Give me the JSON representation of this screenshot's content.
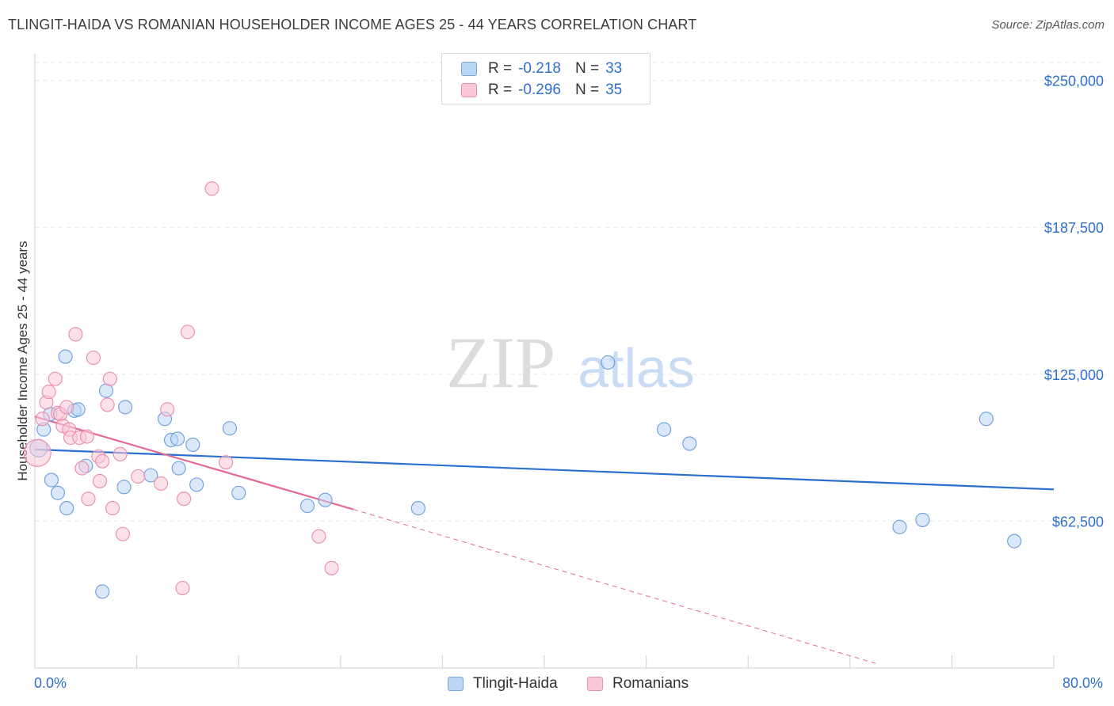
{
  "title": "TLINGIT-HAIDA VS ROMANIAN HOUSEHOLDER INCOME AGES 25 - 44 YEARS CORRELATION CHART",
  "source": "Source: ZipAtlas.com",
  "watermark": {
    "zip": "ZIP",
    "atlas": "atlas"
  },
  "legend": {
    "rows": [
      {
        "r_label": "R =",
        "r_value": "-0.218",
        "n_label": "N =",
        "n_value": "33"
      },
      {
        "r_label": "R =",
        "r_value": "-0.296",
        "n_label": "N =",
        "n_value": "35"
      }
    ]
  },
  "x_axis": {
    "min_label": "0.0%",
    "max_label": "80.0%"
  },
  "chart_data": {
    "type": "scatter",
    "title": "TLINGIT-HAIDA VS ROMANIAN HOUSEHOLDER INCOME AGES 25 - 44 YEARS CORRELATION CHART",
    "xlabel": "",
    "ylabel": "Householder Income Ages 25 - 44 years",
    "xlim": [
      0,
      80
    ],
    "ylim": [
      0,
      262000
    ],
    "y_ticks": [
      62500,
      125000,
      187500,
      250000
    ],
    "y_tick_labels": [
      "$62,500",
      "$125,000",
      "$187,500",
      "$250,000"
    ],
    "grid": true,
    "series": [
      {
        "name": "Tlingit-Haida",
        "color": "#6b9de0",
        "fill": "#bcd5f5",
        "trend": {
          "x": [
            0,
            80
          ],
          "y": [
            93000,
            76000
          ],
          "color": "#2a6fcf"
        },
        "points": [
          {
            "x": 0.3,
            "y": 93500,
            "s": 1.3
          },
          {
            "x": 0.7,
            "y": 101500
          },
          {
            "x": 1.2,
            "y": 108000
          },
          {
            "x": 1.3,
            "y": 80000
          },
          {
            "x": 1.8,
            "y": 74500
          },
          {
            "x": 2.4,
            "y": 132500
          },
          {
            "x": 2.5,
            "y": 68000
          },
          {
            "x": 3.1,
            "y": 109500
          },
          {
            "x": 3.4,
            "y": 110000
          },
          {
            "x": 4.0,
            "y": 86000
          },
          {
            "x": 5.3,
            "y": 32500
          },
          {
            "x": 5.6,
            "y": 118000
          },
          {
            "x": 7.0,
            "y": 77000
          },
          {
            "x": 7.1,
            "y": 111000
          },
          {
            "x": 9.1,
            "y": 82000
          },
          {
            "x": 10.2,
            "y": 106000
          },
          {
            "x": 10.7,
            "y": 97000
          },
          {
            "x": 11.2,
            "y": 97500
          },
          {
            "x": 11.3,
            "y": 85000
          },
          {
            "x": 12.4,
            "y": 95000
          },
          {
            "x": 12.7,
            "y": 78000
          },
          {
            "x": 15.3,
            "y": 102000
          },
          {
            "x": 16.0,
            "y": 74500
          },
          {
            "x": 21.4,
            "y": 69000
          },
          {
            "x": 22.8,
            "y": 71500
          },
          {
            "x": 30.1,
            "y": 68000
          },
          {
            "x": 45.0,
            "y": 130000
          },
          {
            "x": 49.4,
            "y": 101500
          },
          {
            "x": 51.4,
            "y": 95500
          },
          {
            "x": 67.9,
            "y": 60000
          },
          {
            "x": 69.7,
            "y": 63000
          },
          {
            "x": 74.7,
            "y": 106000
          },
          {
            "x": 76.9,
            "y": 54000
          }
        ]
      },
      {
        "name": "Romanians",
        "color": "#ea8caa",
        "fill": "#f9c8d8",
        "trend": {
          "x": [
            0,
            25
          ],
          "y": [
            107000,
            67500
          ],
          "color": "#e36a95",
          "dashed_to": {
            "x": 66,
            "y": 2000
          }
        },
        "points": [
          {
            "x": 0.2,
            "y": 91500,
            "s": 2.0
          },
          {
            "x": 0.6,
            "y": 106000
          },
          {
            "x": 0.9,
            "y": 113000
          },
          {
            "x": 1.1,
            "y": 117500
          },
          {
            "x": 1.6,
            "y": 123000
          },
          {
            "x": 1.8,
            "y": 108500
          },
          {
            "x": 2.0,
            "y": 108000
          },
          {
            "x": 2.2,
            "y": 103000
          },
          {
            "x": 2.5,
            "y": 111000
          },
          {
            "x": 2.7,
            "y": 101500
          },
          {
            "x": 2.8,
            "y": 98000
          },
          {
            "x": 3.2,
            "y": 142000
          },
          {
            "x": 3.5,
            "y": 98000
          },
          {
            "x": 3.7,
            "y": 85000
          },
          {
            "x": 4.1,
            "y": 98500
          },
          {
            "x": 4.2,
            "y": 72000
          },
          {
            "x": 4.6,
            "y": 132000
          },
          {
            "x": 5.0,
            "y": 90000
          },
          {
            "x": 5.1,
            "y": 79500
          },
          {
            "x": 5.3,
            "y": 88000
          },
          {
            "x": 5.7,
            "y": 112000
          },
          {
            "x": 5.9,
            "y": 123000
          },
          {
            "x": 6.1,
            "y": 68000
          },
          {
            "x": 6.7,
            "y": 91000
          },
          {
            "x": 6.9,
            "y": 57000
          },
          {
            "x": 8.1,
            "y": 81500
          },
          {
            "x": 9.9,
            "y": 78500
          },
          {
            "x": 10.4,
            "y": 110000
          },
          {
            "x": 11.6,
            "y": 34000
          },
          {
            "x": 11.7,
            "y": 72000
          },
          {
            "x": 12.0,
            "y": 143000
          },
          {
            "x": 13.9,
            "y": 204000
          },
          {
            "x": 15.0,
            "y": 87500
          },
          {
            "x": 22.3,
            "y": 56000
          },
          {
            "x": 23.3,
            "y": 42500
          }
        ]
      }
    ]
  }
}
